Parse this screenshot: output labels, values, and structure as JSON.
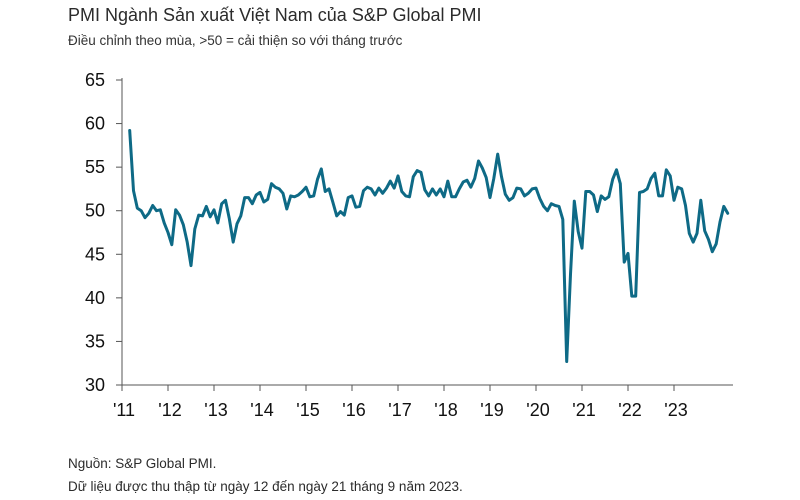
{
  "header": {
    "title": "PMI Ngành Sản xuất Việt Nam của S&P Global PMI",
    "subtitle": "Điều chỉnh theo mùa, >50 = cải thiện so với tháng trước"
  },
  "footer": {
    "source": "Nguồn: S&P Global PMI.",
    "note": "Dữ liệu được thu thập từ ngày 12 đến ngày 21 tháng 9 năm 2023."
  },
  "colors": {
    "line": "#0e6a86",
    "axis": "#555555",
    "text": "#111111"
  },
  "chart_data": {
    "type": "line",
    "title": "PMI Ngành Sản xuất Việt Nam của S&P Global PMI",
    "subtitle": "Điều chỉnh theo mùa, >50 = cải thiện so với tháng trước",
    "xlabel": "",
    "ylabel": "",
    "ylim": [
      30,
      65
    ],
    "yticks": [
      30,
      35,
      40,
      45,
      50,
      55,
      60,
      65
    ],
    "xticks": [
      "'11",
      "'12",
      "'13",
      "'14",
      "'15",
      "'16",
      "'17",
      "'18",
      "'19",
      "'20",
      "'21",
      "'22",
      "'23"
    ],
    "grid": false,
    "x_start": "2011-03",
    "x_end": "2023-09",
    "series": [
      {
        "values": [
          59.2,
          52.3,
          50.3,
          50.0,
          49.2,
          49.7,
          50.6,
          50.0,
          50.1,
          48.6,
          47.5,
          46.1,
          50.1,
          49.5,
          48.4,
          46.4,
          43.7,
          47.9,
          49.5,
          49.4,
          50.5,
          49.3,
          50.1,
          48.6,
          50.8,
          51.2,
          49.1,
          46.4,
          48.5,
          49.4,
          51.5,
          51.5,
          50.8,
          51.8,
          52.1,
          51.0,
          51.3,
          53.1,
          52.7,
          52.5,
          52.0,
          50.2,
          51.7,
          51.6,
          51.8,
          52.2,
          52.7,
          51.6,
          51.7,
          53.6,
          54.8,
          52.2,
          52.5,
          51.0,
          49.4,
          49.9,
          49.5,
          51.5,
          51.7,
          50.4,
          50.5,
          52.3,
          52.7,
          52.5,
          51.8,
          52.6,
          52.0,
          52.6,
          53.4,
          52.6,
          54.0,
          52.2,
          51.7,
          51.6,
          53.9,
          54.6,
          54.4,
          52.4,
          51.7,
          52.5,
          51.8,
          52.5,
          51.6,
          53.4,
          51.6,
          51.6,
          52.5,
          53.3,
          53.5,
          52.7,
          53.7,
          55.7,
          54.9,
          53.8,
          51.5,
          53.7,
          56.5,
          53.9,
          51.9,
          51.2,
          51.5,
          52.6,
          52.5,
          51.7,
          52.0,
          52.5,
          52.6,
          51.4,
          50.5,
          50.0,
          50.8,
          50.6,
          50.5,
          49.0,
          32.7,
          42.7,
          51.1,
          47.6,
          45.7,
          52.2,
          52.2,
          51.8,
          49.9,
          51.7,
          51.3,
          51.6,
          53.6,
          54.7,
          53.1,
          44.1,
          45.1,
          40.2,
          40.2,
          52.1,
          52.2,
          52.5,
          53.7,
          54.3,
          51.7,
          51.7,
          54.7,
          54.0,
          51.2,
          52.7,
          52.5,
          50.6,
          47.4,
          46.4,
          47.4,
          51.2,
          47.7,
          46.7,
          45.3,
          46.2,
          48.7,
          50.5,
          49.7
        ]
      }
    ]
  }
}
